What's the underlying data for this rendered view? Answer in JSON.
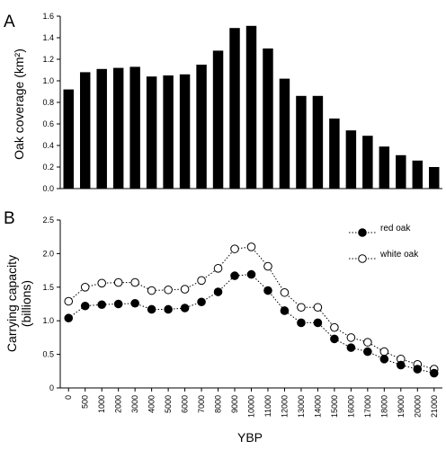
{
  "chart_data": [
    {
      "panel_label": "A",
      "type": "bar",
      "categories": [
        "0",
        "500",
        "1000",
        "2000",
        "3000",
        "4000",
        "5000",
        "6000",
        "7000",
        "8000",
        "9000",
        "10000",
        "11000",
        "12000",
        "13000",
        "14000",
        "15000",
        "16000",
        "17000",
        "18000",
        "19000",
        "20000",
        "21000"
      ],
      "values": [
        0.92,
        1.08,
        1.11,
        1.12,
        1.13,
        1.04,
        1.05,
        1.06,
        1.15,
        1.28,
        1.49,
        1.51,
        1.3,
        1.02,
        0.86,
        0.86,
        0.65,
        0.54,
        0.49,
        0.39,
        0.31,
        0.26,
        0.2
      ],
      "ylabel": "Oak coverage (km²)",
      "ylim": [
        0,
        1.6
      ],
      "yticks": [
        "0.0",
        "0.2",
        "0.4",
        "0.6",
        "0.8",
        "1.0",
        "1.2",
        "1.4",
        "1.6"
      ],
      "bar_color": "#000000"
    },
    {
      "panel_label": "B",
      "type": "line",
      "categories": [
        "0",
        "500",
        "1000",
        "2000",
        "3000",
        "4000",
        "5000",
        "6000",
        "7000",
        "8000",
        "9000",
        "10000",
        "11000",
        "12000",
        "13000",
        "14000",
        "15000",
        "16000",
        "17000",
        "18000",
        "19000",
        "20000",
        "21000"
      ],
      "series": [
        {
          "name": "red oak",
          "marker": "filled",
          "values": [
            1.04,
            1.22,
            1.24,
            1.25,
            1.26,
            1.17,
            1.17,
            1.19,
            1.28,
            1.43,
            1.67,
            1.69,
            1.45,
            1.15,
            0.97,
            0.97,
            0.73,
            0.6,
            0.54,
            0.43,
            0.34,
            0.28,
            0.22
          ]
        },
        {
          "name": "white oak",
          "marker": "open",
          "values": [
            1.29,
            1.5,
            1.56,
            1.57,
            1.57,
            1.45,
            1.46,
            1.47,
            1.6,
            1.78,
            2.07,
            2.1,
            1.81,
            1.42,
            1.2,
            1.2,
            0.9,
            0.75,
            0.68,
            0.54,
            0.43,
            0.35,
            0.28
          ]
        }
      ],
      "ylabel": "Carrying capacity",
      "ylabel2": "(billions)",
      "xlabel": "YBP",
      "ylim": [
        0,
        2.5
      ],
      "yticks": [
        "0",
        "0.5",
        "1.0",
        "1.5",
        "2.0",
        "2.5"
      ],
      "legend": "top-right"
    }
  ]
}
